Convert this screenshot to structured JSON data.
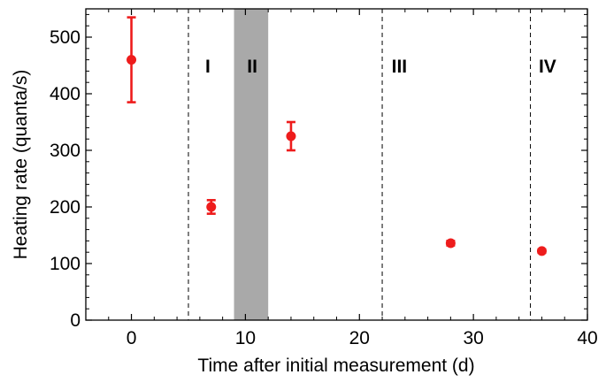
{
  "chart_data": {
    "type": "scatter",
    "xlabel": "Time after initial measurement (d)",
    "ylabel": "Heating rate (quanta/s)",
    "xlim": [
      -4,
      40
    ],
    "ylim": [
      0,
      550
    ],
    "xticks": [
      0,
      10,
      20,
      30,
      40
    ],
    "yticks": [
      0,
      100,
      200,
      300,
      400,
      500
    ],
    "xtick_labels": [
      "0",
      "10",
      "20",
      "30",
      "40"
    ],
    "ytick_labels": [
      "0",
      "100",
      "200",
      "300",
      "400",
      "500"
    ],
    "grid": false,
    "marker_color": "#ee1c1c",
    "points": [
      {
        "x": 0,
        "y": 460,
        "err_low": 385,
        "err_high": 535
      },
      {
        "x": 7,
        "y": 200,
        "err_low": 188,
        "err_high": 212
      },
      {
        "x": 14,
        "y": 325,
        "err_low": 300,
        "err_high": 350
      },
      {
        "x": 28,
        "y": 136,
        "err_low": 132,
        "err_high": 140
      },
      {
        "x": 36,
        "y": 122,
        "err_low": 119,
        "err_high": 125
      }
    ],
    "vlines": [
      5,
      22,
      35
    ],
    "shaded_band": {
      "x0": 9,
      "x1": 12,
      "color": "#a9a9a9"
    },
    "region_labels": [
      {
        "text": "I",
        "x": 6.7
      },
      {
        "text": "II",
        "x": 10.6
      },
      {
        "text": "III",
        "x": 23.5
      },
      {
        "text": "IV",
        "x": 36.5
      }
    ]
  }
}
